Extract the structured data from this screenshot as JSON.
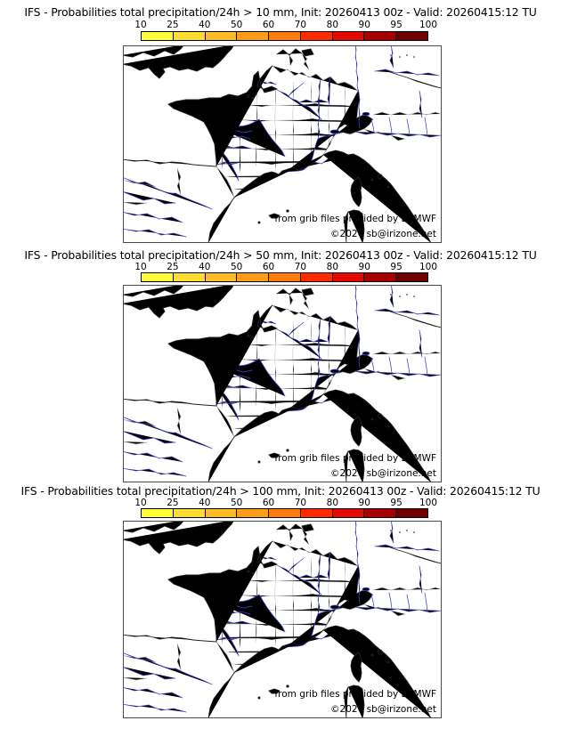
{
  "scale": {
    "ticks": [
      "10",
      "25",
      "40",
      "50",
      "60",
      "70",
      "80",
      "90",
      "95",
      "100"
    ],
    "colors": [
      "#ffff33",
      "#ffdd30",
      "#ffbb22",
      "#ff9d18",
      "#ff7b0e",
      "#ff2a00",
      "#e30b00",
      "#a80000",
      "#700000"
    ],
    "unit": "%"
  },
  "map_colors": {
    "coast": "#222222",
    "border": "#b0b0b0",
    "admin": "#cdcdcd",
    "river": "#4444e0",
    "frame": "#4a4a4a"
  },
  "panels": [
    {
      "threshold_mm": 10,
      "title": "IFS - Probabilities total precipitation/24h > 10 mm, Init: 20260413 00z - Valid: 20260415:12 TU",
      "credit": "from grib files provided by ECMWF",
      "copyright": "©2026 sb@irizone.net",
      "shaded": true,
      "shaded_areas": [
        "northwest corner (Celtic Sea / southwest England coast)",
        "northern Italy / Gulf of Genoa / Corsica / Tyrrhenian Sea"
      ]
    },
    {
      "threshold_mm": 50,
      "title": "IFS - Probabilities total precipitation/24h > 50 mm, Init: 20260413 00z - Valid: 20260415:12 TU",
      "credit": "from grib files provided by ECMWF",
      "copyright": "©2026 sb@irizone.net",
      "shaded": false,
      "shaded_areas": []
    },
    {
      "threshold_mm": 100,
      "title": "IFS - Probabilities total precipitation/24h > 100 mm, Init: 20260413 00z - Valid: 20260415:12 TU",
      "credit": "from grib files provided by ECMWF",
      "copyright": "©2026 sb@irizone.net",
      "shaded": false,
      "shaded_areas": []
    }
  ]
}
